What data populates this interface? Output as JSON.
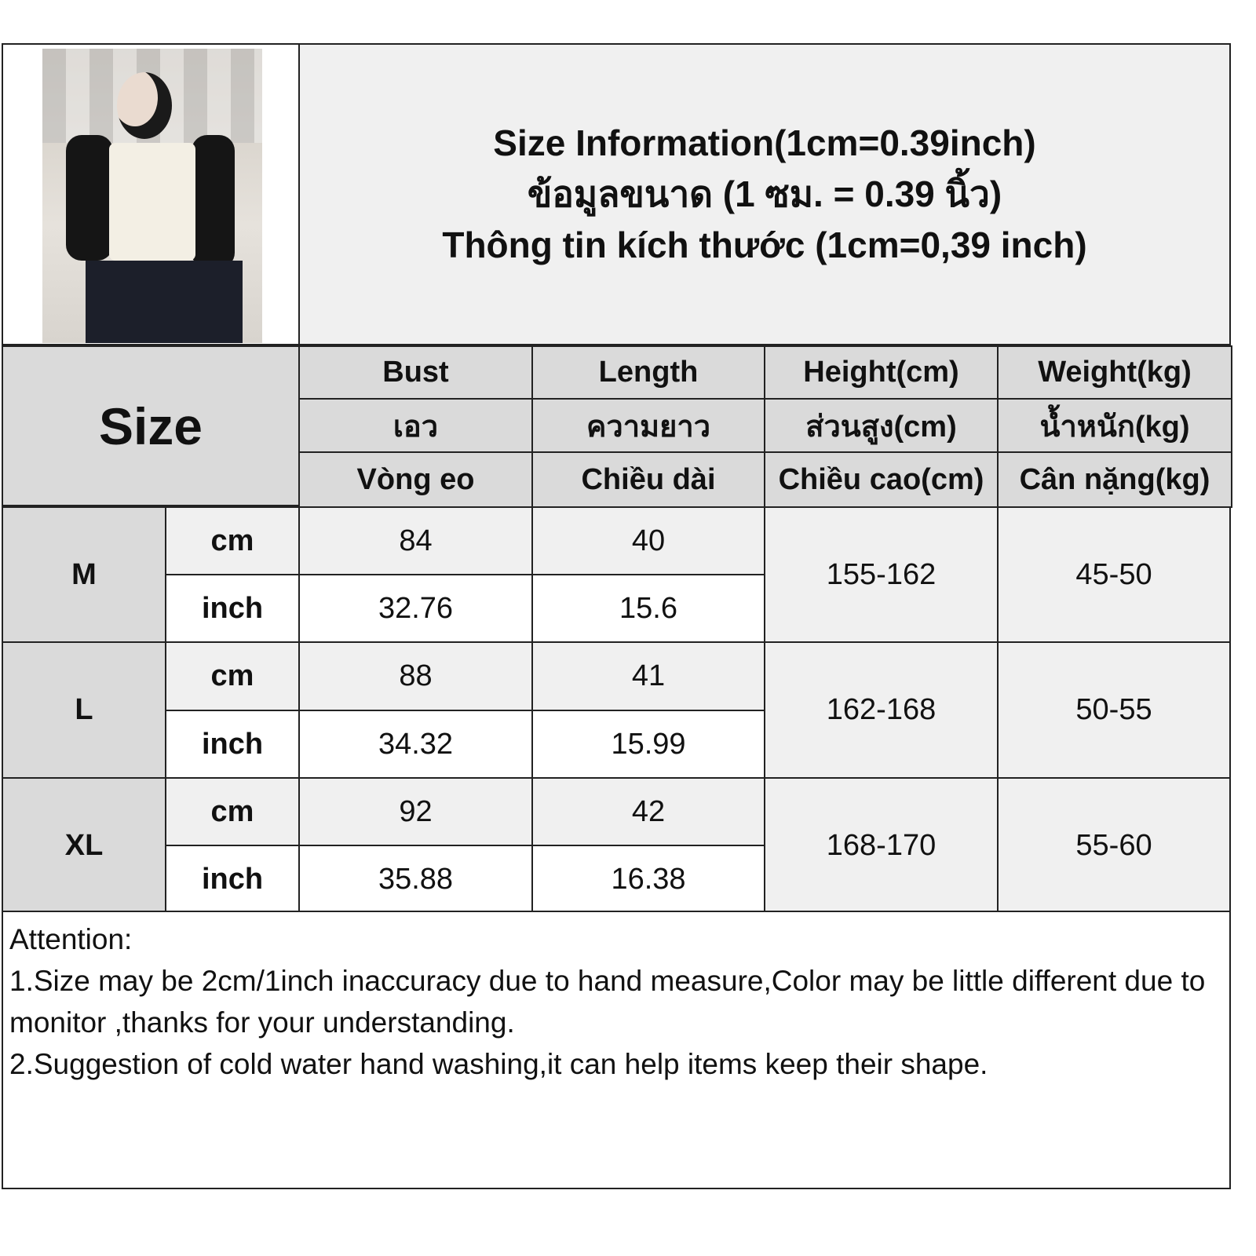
{
  "title": {
    "en": "Size Information(1cm=0.39inch)",
    "th": "ข้อมูลขนาด (1 ซม. = 0.39 นิ้ว)",
    "vi": "Thông tin kích thước (1cm=0,39 inch)"
  },
  "size_label": "Size",
  "columns": [
    {
      "en": "Bust",
      "th": "เอว",
      "vi": "Vòng eo"
    },
    {
      "en": "Length",
      "th": "ความยาว",
      "vi": "Chiều dài"
    },
    {
      "en": "Height(cm)",
      "th": "ส่วนสูง(cm)",
      "vi": "Chiều cao(cm)"
    },
    {
      "en": "Weight(kg)",
      "th": "น้ำหนัก(kg)",
      "vi": "Cân nặng(kg)"
    }
  ],
  "rows": [
    {
      "size": "M",
      "cm_label": "cm",
      "inch_label": "inch",
      "bust_cm": "84",
      "length_cm": "40",
      "bust_inch": "32.76",
      "length_inch": "15.6",
      "height": "155-162",
      "weight": "45-50"
    },
    {
      "size": "L",
      "cm_label": "cm",
      "inch_label": "inch",
      "bust_cm": "88",
      "length_cm": "41",
      "bust_inch": "34.32",
      "length_inch": "15.99",
      "height": "162-168",
      "weight": "50-55"
    },
    {
      "size": "XL",
      "cm_label": "cm",
      "inch_label": "inch",
      "bust_cm": "92",
      "length_cm": "42",
      "bust_inch": "35.88",
      "length_inch": "16.38",
      "height": "168-170",
      "weight": "55-60"
    }
  ],
  "attention": {
    "heading": "Attention:",
    "notes": [
      "1.Size may be 2cm/1inch inaccuracy due to hand measure,Color may be little different due to monitor ,thanks for your understanding.",
      "2.Suggestion of cold water hand washing,it can help items keep their shape."
    ]
  }
}
